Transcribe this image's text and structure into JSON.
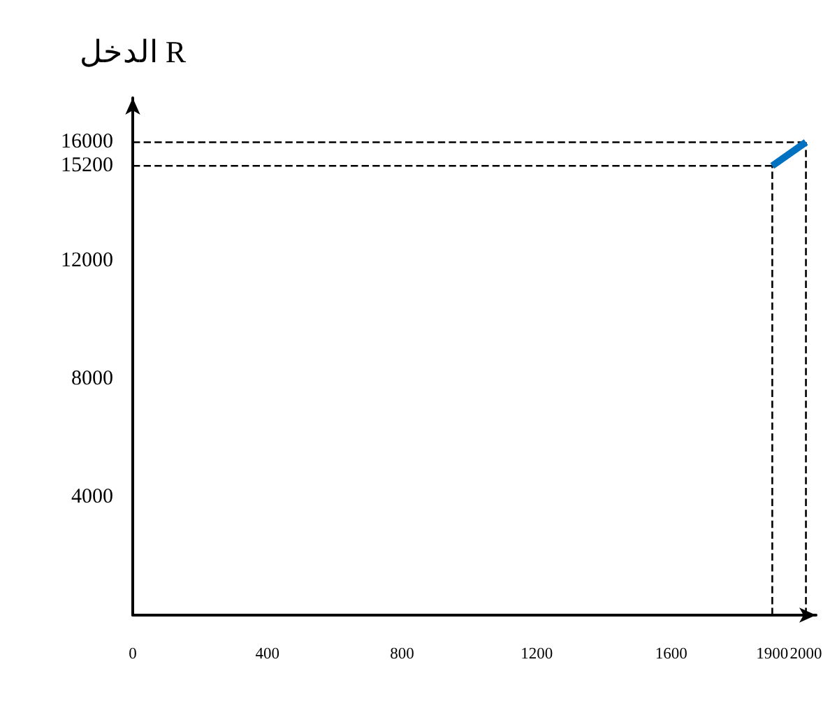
{
  "chart_data": {
    "type": "line",
    "ylabel": "الدخل R",
    "x": [
      1900,
      2000
    ],
    "series": [
      {
        "color": "#0070c0",
        "values": [
          15200,
          16000
        ]
      }
    ],
    "xlim": [
      0,
      2030
    ],
    "xticks": [
      0,
      400,
      800,
      1200,
      1600,
      1900,
      2000
    ],
    "ylim": [
      0,
      17500
    ],
    "yticks": [
      4000,
      8000,
      12000,
      15200,
      16000
    ],
    "marker": "none",
    "line_style": "solid",
    "grid": false,
    "ref_lines": [
      {
        "axis": "x",
        "value": 1900,
        "color": "#000000",
        "line_style": "dashed"
      },
      {
        "axis": "x",
        "value": 2000,
        "color": "#000000",
        "line_style": "dashed"
      },
      {
        "axis": "y",
        "value": 15200,
        "color": "#000000",
        "line_style": "dashed"
      },
      {
        "axis": "y",
        "value": 16000,
        "color": "#000000",
        "line_style": "dashed"
      }
    ]
  }
}
